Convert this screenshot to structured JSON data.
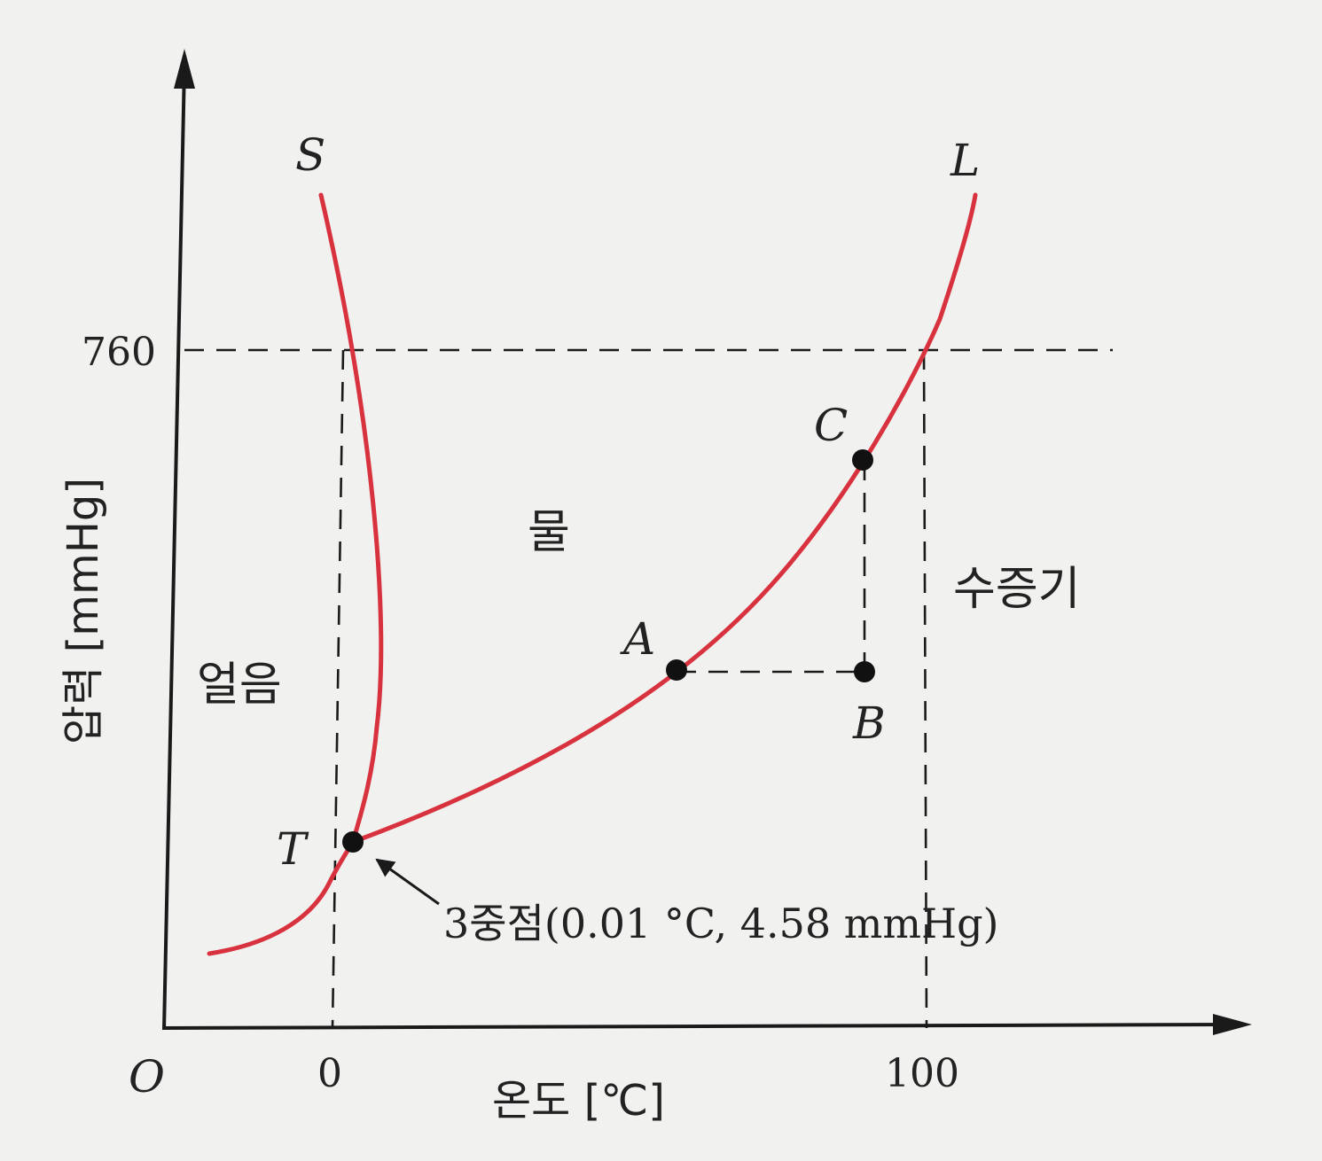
{
  "axes": {
    "origin_label": "O",
    "x_label": "온도 [℃]",
    "y_label": "압력 [mmHg]",
    "x_ticks": [
      "0",
      "100"
    ],
    "y_ticks": [
      "760"
    ]
  },
  "regions": {
    "ice": "얼음",
    "water": "물",
    "vapor": "수증기"
  },
  "curve_labels": {
    "melting": "S",
    "vaporization": "L"
  },
  "points": {
    "triple": "T",
    "a": "A",
    "b": "B",
    "c": "C"
  },
  "annotation": "3중점(0.01 °C,  4.58 mmHg)",
  "colors": {
    "curve": "#d8323f",
    "ink": "#1a1a1a",
    "background": "#f1f1ef"
  }
}
